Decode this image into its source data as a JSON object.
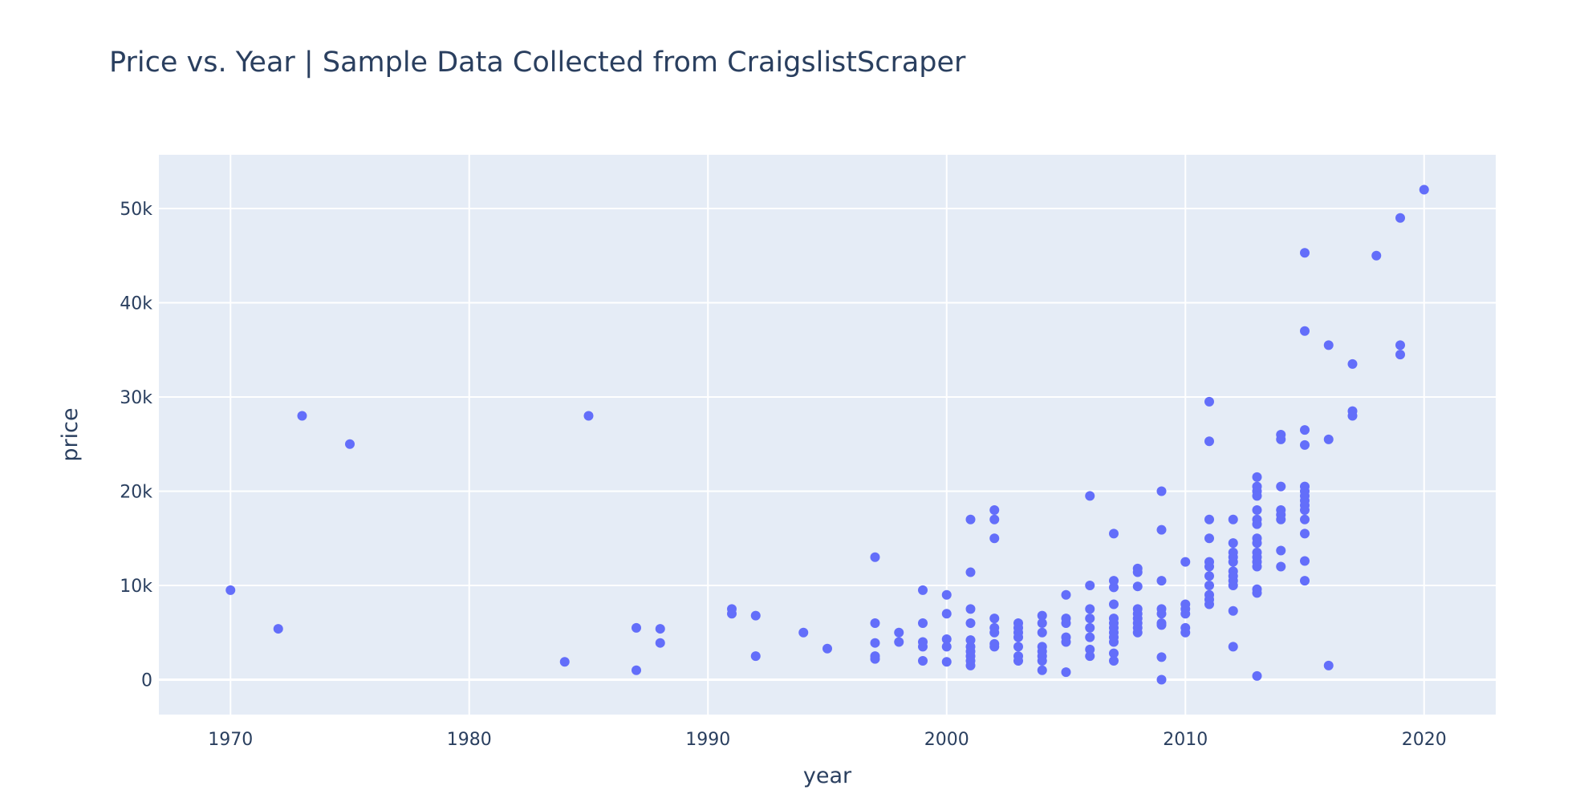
{
  "chart_data": {
    "type": "scatter",
    "title": "Price vs. Year | Sample Data Collected from CraigslistScraper",
    "xlabel": "year",
    "ylabel": "price",
    "xlim": [
      1967,
      2023
    ],
    "ylim": [
      -3700,
      55700
    ],
    "x_ticks": [
      1970,
      1980,
      1990,
      2000,
      2010,
      2020
    ],
    "y_ticks": [
      {
        "value": 0,
        "label": "0"
      },
      {
        "value": 10000,
        "label": "10k"
      },
      {
        "value": 20000,
        "label": "20k"
      },
      {
        "value": 30000,
        "label": "30k"
      },
      {
        "value": 40000,
        "label": "40k"
      },
      {
        "value": 50000,
        "label": "50k"
      }
    ],
    "grid": true,
    "marker_color": "#636efa",
    "plot_bgcolor": "#e5ecf6",
    "points": [
      [
        1970,
        9500
      ],
      [
        1972,
        5400
      ],
      [
        1973,
        28000
      ],
      [
        1975,
        25000
      ],
      [
        1984,
        1900
      ],
      [
        1985,
        28000
      ],
      [
        1987,
        5500
      ],
      [
        1987,
        1000
      ],
      [
        1988,
        5400
      ],
      [
        1988,
        3900
      ],
      [
        1991,
        7500
      ],
      [
        1991,
        7000
      ],
      [
        1992,
        6800
      ],
      [
        1992,
        2500
      ],
      [
        1994,
        5000
      ],
      [
        1995,
        3300
      ],
      [
        1997,
        13000
      ],
      [
        1997,
        6000
      ],
      [
        1997,
        3900
      ],
      [
        1997,
        2500
      ],
      [
        1997,
        2200
      ],
      [
        1998,
        5000
      ],
      [
        1998,
        4000
      ],
      [
        1999,
        9500
      ],
      [
        1999,
        6000
      ],
      [
        1999,
        4000
      ],
      [
        1999,
        3500
      ],
      [
        1999,
        2000
      ],
      [
        2000,
        9000
      ],
      [
        2000,
        7000
      ],
      [
        2000,
        4300
      ],
      [
        2000,
        3500
      ],
      [
        2000,
        1900
      ],
      [
        2001,
        17000
      ],
      [
        2001,
        11400
      ],
      [
        2001,
        7500
      ],
      [
        2001,
        6000
      ],
      [
        2001,
        4200
      ],
      [
        2001,
        3500
      ],
      [
        2001,
        3000
      ],
      [
        2001,
        2500
      ],
      [
        2001,
        2000
      ],
      [
        2001,
        1500
      ],
      [
        2002,
        18000
      ],
      [
        2002,
        17000
      ],
      [
        2002,
        15000
      ],
      [
        2002,
        6500
      ],
      [
        2002,
        5500
      ],
      [
        2002,
        5000
      ],
      [
        2002,
        3800
      ],
      [
        2002,
        3500
      ],
      [
        2003,
        6000
      ],
      [
        2003,
        5500
      ],
      [
        2003,
        5000
      ],
      [
        2003,
        4500
      ],
      [
        2003,
        3500
      ],
      [
        2003,
        2500
      ],
      [
        2003,
        2000
      ],
      [
        2004,
        6800
      ],
      [
        2004,
        6000
      ],
      [
        2004,
        5000
      ],
      [
        2004,
        3500
      ],
      [
        2004,
        3000
      ],
      [
        2004,
        2500
      ],
      [
        2004,
        2000
      ],
      [
        2004,
        1000
      ],
      [
        2005,
        9000
      ],
      [
        2005,
        6500
      ],
      [
        2005,
        6000
      ],
      [
        2005,
        4500
      ],
      [
        2005,
        4000
      ],
      [
        2005,
        800
      ],
      [
        2006,
        19500
      ],
      [
        2006,
        10000
      ],
      [
        2006,
        7500
      ],
      [
        2006,
        6500
      ],
      [
        2006,
        5500
      ],
      [
        2006,
        4500
      ],
      [
        2006,
        3200
      ],
      [
        2006,
        2500
      ],
      [
        2007,
        15500
      ],
      [
        2007,
        10500
      ],
      [
        2007,
        9800
      ],
      [
        2007,
        8000
      ],
      [
        2007,
        6500
      ],
      [
        2007,
        6000
      ],
      [
        2007,
        5500
      ],
      [
        2007,
        5000
      ],
      [
        2007,
        4500
      ],
      [
        2007,
        4000
      ],
      [
        2007,
        2800
      ],
      [
        2007,
        2000
      ],
      [
        2008,
        11800
      ],
      [
        2008,
        11400
      ],
      [
        2008,
        9900
      ],
      [
        2008,
        7500
      ],
      [
        2008,
        7000
      ],
      [
        2008,
        6500
      ],
      [
        2008,
        6000
      ],
      [
        2008,
        5500
      ],
      [
        2008,
        5000
      ],
      [
        2009,
        20000
      ],
      [
        2009,
        15900
      ],
      [
        2009,
        10500
      ],
      [
        2009,
        7500
      ],
      [
        2009,
        7000
      ],
      [
        2009,
        6000
      ],
      [
        2009,
        5800
      ],
      [
        2009,
        2400
      ],
      [
        2009,
        0
      ],
      [
        2010,
        12500
      ],
      [
        2010,
        8000
      ],
      [
        2010,
        7500
      ],
      [
        2010,
        7000
      ],
      [
        2010,
        5500
      ],
      [
        2010,
        5000
      ],
      [
        2011,
        29500
      ],
      [
        2011,
        25300
      ],
      [
        2011,
        17000
      ],
      [
        2011,
        15000
      ],
      [
        2011,
        12500
      ],
      [
        2011,
        12000
      ],
      [
        2011,
        11000
      ],
      [
        2011,
        10000
      ],
      [
        2011,
        9000
      ],
      [
        2011,
        8500
      ],
      [
        2011,
        8000
      ],
      [
        2012,
        17000
      ],
      [
        2012,
        14500
      ],
      [
        2012,
        13500
      ],
      [
        2012,
        13000
      ],
      [
        2012,
        12500
      ],
      [
        2012,
        11500
      ],
      [
        2012,
        11000
      ],
      [
        2012,
        10500
      ],
      [
        2012,
        10000
      ],
      [
        2012,
        7300
      ],
      [
        2012,
        3500
      ],
      [
        2013,
        21500
      ],
      [
        2013,
        20500
      ],
      [
        2013,
        20000
      ],
      [
        2013,
        19500
      ],
      [
        2013,
        18000
      ],
      [
        2013,
        17000
      ],
      [
        2013,
        16500
      ],
      [
        2013,
        15000
      ],
      [
        2013,
        14500
      ],
      [
        2013,
        13500
      ],
      [
        2013,
        13000
      ],
      [
        2013,
        12500
      ],
      [
        2013,
        12000
      ],
      [
        2013,
        9600
      ],
      [
        2013,
        9200
      ],
      [
        2013,
        400
      ],
      [
        2014,
        26000
      ],
      [
        2014,
        25500
      ],
      [
        2014,
        20500
      ],
      [
        2014,
        18000
      ],
      [
        2014,
        17500
      ],
      [
        2014,
        17000
      ],
      [
        2014,
        13700
      ],
      [
        2014,
        12000
      ],
      [
        2015,
        45300
      ],
      [
        2015,
        37000
      ],
      [
        2015,
        26500
      ],
      [
        2015,
        24900
      ],
      [
        2015,
        20500
      ],
      [
        2015,
        20000
      ],
      [
        2015,
        19500
      ],
      [
        2015,
        19000
      ],
      [
        2015,
        18500
      ],
      [
        2015,
        18000
      ],
      [
        2015,
        17000
      ],
      [
        2015,
        15500
      ],
      [
        2015,
        12600
      ],
      [
        2015,
        10500
      ],
      [
        2016,
        35500
      ],
      [
        2016,
        25500
      ],
      [
        2016,
        1500
      ],
      [
        2017,
        33500
      ],
      [
        2017,
        28500
      ],
      [
        2017,
        28000
      ],
      [
        2018,
        45000
      ],
      [
        2019,
        49000
      ],
      [
        2019,
        35500
      ],
      [
        2019,
        34500
      ],
      [
        2020,
        52000
      ]
    ]
  }
}
